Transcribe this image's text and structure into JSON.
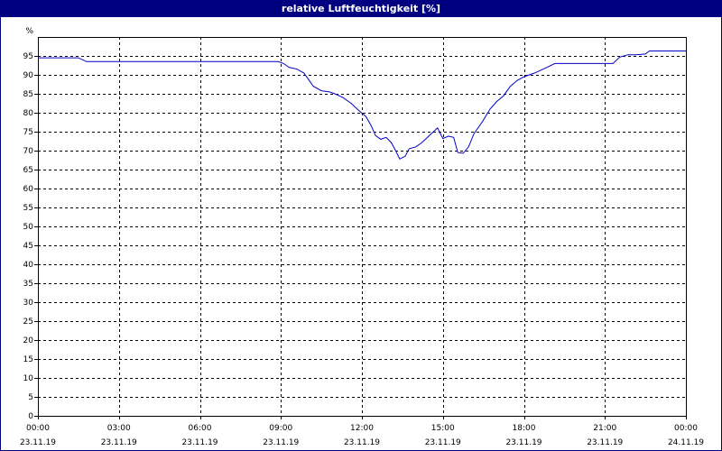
{
  "window": {
    "title": "relative Luftfeuchtigkeit [%]"
  },
  "chart_data": {
    "type": "line",
    "title": "relative Luftfeuchtigkeit [%]",
    "ylabel": "%",
    "xlabel": "",
    "ylim": [
      0,
      100
    ],
    "y_ticks": [
      0,
      5,
      10,
      15,
      20,
      25,
      30,
      35,
      40,
      45,
      50,
      55,
      60,
      65,
      70,
      75,
      80,
      85,
      90,
      95
    ],
    "x_range_hours": [
      0,
      24
    ],
    "x_ticks": [
      {
        "hour": 0,
        "time": "00:00",
        "date": "23.11.19"
      },
      {
        "hour": 3,
        "time": "03:00",
        "date": "23.11.19"
      },
      {
        "hour": 6,
        "time": "06:00",
        "date": "23.11.19"
      },
      {
        "hour": 9,
        "time": "09:00",
        "date": "23.11.19"
      },
      {
        "hour": 12,
        "time": "12:00",
        "date": "23.11.19"
      },
      {
        "hour": 15,
        "time": "15:00",
        "date": "23.11.19"
      },
      {
        "hour": 18,
        "time": "18:00",
        "date": "23.11.19"
      },
      {
        "hour": 21,
        "time": "21:00",
        "date": "23.11.19"
      },
      {
        "hour": 24,
        "time": "00:00",
        "date": "24.11.19"
      }
    ],
    "grid": true,
    "line_color": "#0000c8",
    "series": [
      {
        "points": [
          [
            0.0,
            94.5
          ],
          [
            1.5,
            94.5
          ],
          [
            1.8,
            93.5
          ],
          [
            6.0,
            93.5
          ],
          [
            8.9,
            93.5
          ],
          [
            9.1,
            93.0
          ],
          [
            9.3,
            92.0
          ],
          [
            9.6,
            91.5
          ],
          [
            9.85,
            90.5
          ],
          [
            10.0,
            89.0
          ],
          [
            10.2,
            87.0
          ],
          [
            10.5,
            85.8
          ],
          [
            10.8,
            85.5
          ],
          [
            11.0,
            85.0
          ],
          [
            11.3,
            84.0
          ],
          [
            11.6,
            82.5
          ],
          [
            11.9,
            80.5
          ],
          [
            12.15,
            79.0
          ],
          [
            12.35,
            76.5
          ],
          [
            12.5,
            74.0
          ],
          [
            12.7,
            73.0
          ],
          [
            12.9,
            73.5
          ],
          [
            13.1,
            72.0
          ],
          [
            13.25,
            70.0
          ],
          [
            13.4,
            67.8
          ],
          [
            13.6,
            68.5
          ],
          [
            13.75,
            70.5
          ],
          [
            14.0,
            71.0
          ],
          [
            14.2,
            72.0
          ],
          [
            14.5,
            74.0
          ],
          [
            14.8,
            76.0
          ],
          [
            15.0,
            73.2
          ],
          [
            15.2,
            73.8
          ],
          [
            15.4,
            73.5
          ],
          [
            15.55,
            69.5
          ],
          [
            15.75,
            69.3
          ],
          [
            15.95,
            71.0
          ],
          [
            16.15,
            74.5
          ],
          [
            16.45,
            77.5
          ],
          [
            16.75,
            81.0
          ],
          [
            17.0,
            83.0
          ],
          [
            17.25,
            84.5
          ],
          [
            17.5,
            87.0
          ],
          [
            17.75,
            88.5
          ],
          [
            18.0,
            89.5
          ],
          [
            18.4,
            90.5
          ],
          [
            18.8,
            91.8
          ],
          [
            19.15,
            93.0
          ],
          [
            19.5,
            93.0
          ],
          [
            21.3,
            93.0
          ],
          [
            21.55,
            94.7
          ],
          [
            21.85,
            95.3
          ],
          [
            22.15,
            95.3
          ],
          [
            22.5,
            95.5
          ],
          [
            22.65,
            96.3
          ],
          [
            23.3,
            96.3
          ],
          [
            24.0,
            96.3
          ]
        ]
      }
    ]
  }
}
